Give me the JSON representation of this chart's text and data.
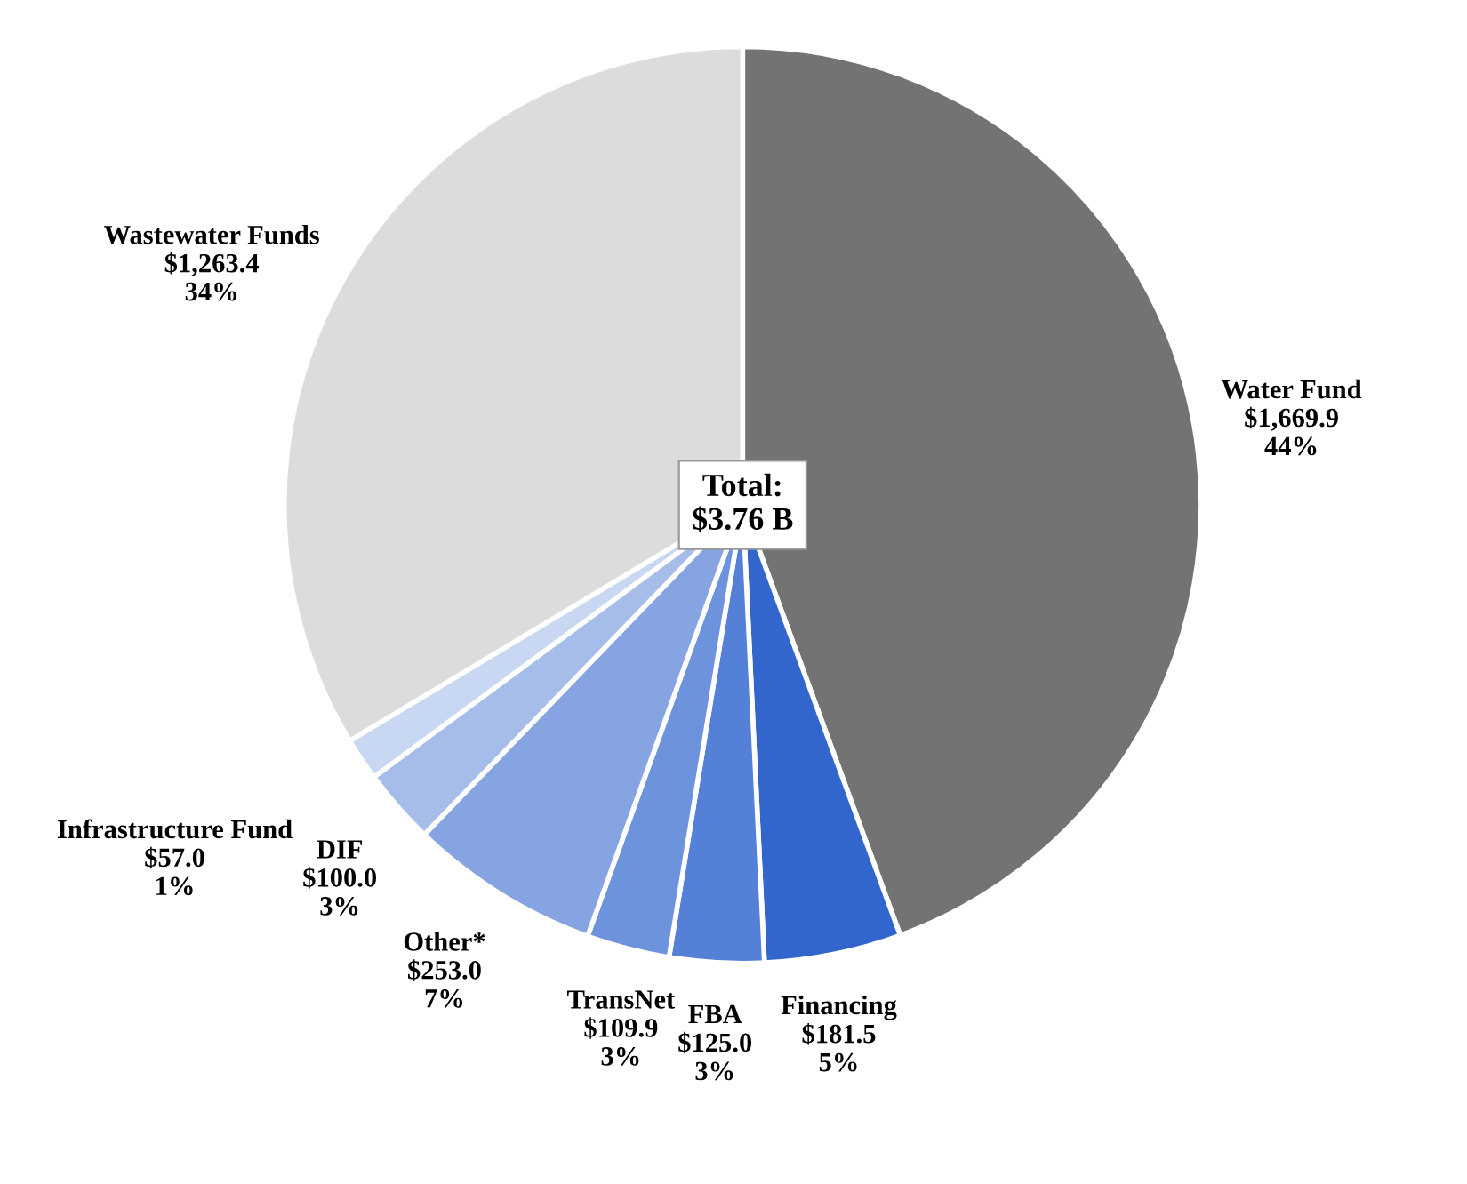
{
  "chart_data": {
    "type": "pie",
    "categories": [
      "Water Fund",
      "Financing",
      "FBA",
      "TransNet",
      "Other*",
      "DIF",
      "Infrastructure Fund",
      "Wastewater Funds"
    ],
    "values": [
      1669.9,
      181.5,
      125.0,
      109.9,
      253.0,
      100.0,
      57.0,
      1263.4
    ],
    "value_labels": [
      "$1,669.9\n44%",
      "$181.5\n5%",
      "$125.0\n3%",
      "$109.9\n3%",
      "$253.0\n7%",
      "$100.0\n3%",
      "$57.0\n1%",
      "$1,263.4\n34%"
    ],
    "colors": [
      "#737373",
      "#3366cc",
      "#5580d8",
      "#6e93dd",
      "#86a4e2",
      "#a6bde9",
      "#c9d8f2",
      "#dcdcdc"
    ],
    "annotations": [
      "Total:\n$3.76 B"
    ],
    "legend": false
  }
}
